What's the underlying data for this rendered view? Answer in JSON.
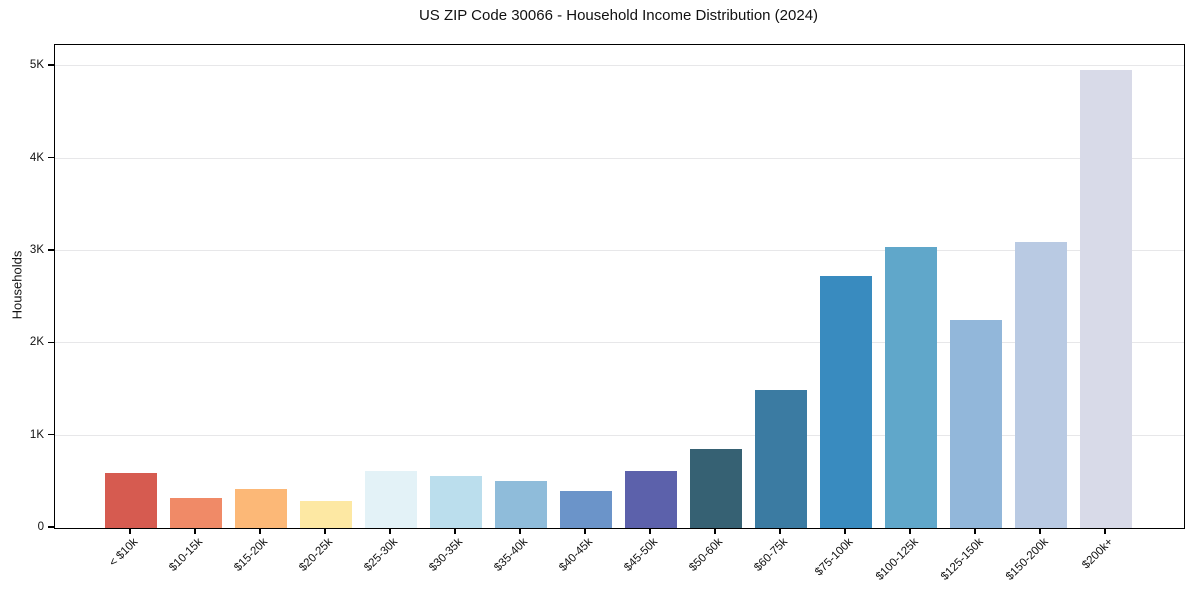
{
  "chart_data": {
    "type": "bar",
    "title": "US ZIP Code 30066 - Household Income Distribution (2024)",
    "xlabel": "",
    "ylabel": "Households",
    "categories": [
      "< $10k",
      "$10-15k",
      "$15-20k",
      "$20-25k",
      "$25-30k",
      "$30-35k",
      "$35-40k",
      "$40-45k",
      "$45-50k",
      "$50-60k",
      "$60-75k",
      "$75-100k",
      "$100-125k",
      "$125-150k",
      "$150-200k",
      "$200k+"
    ],
    "values": [
      595,
      325,
      420,
      295,
      620,
      560,
      505,
      405,
      620,
      855,
      1490,
      2730,
      3045,
      2255,
      3095,
      4960
    ],
    "bar_colors": [
      "#d65b50",
      "#f08a67",
      "#fcb877",
      "#fde8a3",
      "#e3f2f7",
      "#bbdeed",
      "#8fbcda",
      "#6b94c9",
      "#5c61ab",
      "#366173",
      "#3b7ba2",
      "#398bbf",
      "#60a7ca",
      "#92b7da",
      "#b9cae3",
      "#d8dae8"
    ],
    "ylim": [
      0,
      5230
    ],
    "yticks": {
      "values": [
        0,
        1000,
        2000,
        3000,
        4000,
        5000
      ],
      "labels": [
        "0",
        "1K",
        "2K",
        "3K",
        "4K",
        "5K"
      ]
    },
    "grid": "horizontal-light",
    "legend": "none",
    "x_tick_rotation_deg": 45
  },
  "style": {
    "background": "#ffffff",
    "spine_color": "#000000",
    "grid_color": "#e7e7e9",
    "text_color": "#111111"
  }
}
